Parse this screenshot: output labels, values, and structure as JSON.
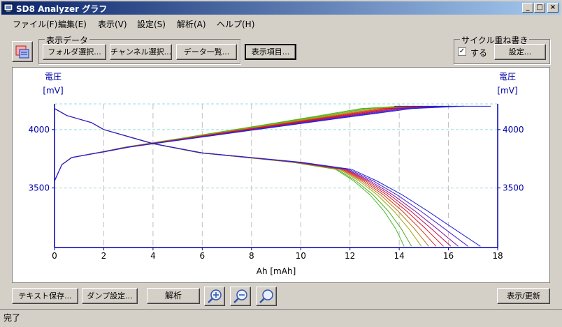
{
  "window": {
    "title": "SD8 Analyzer グラフ"
  },
  "menu": [
    "ファイル(F)",
    "編集(E)",
    "表示(V)",
    "設定(S)",
    "解析(A)",
    "ヘルプ(H)"
  ],
  "display_data": {
    "group_label": "表示データ",
    "folder_button": "フォルダ選択...",
    "channel_button": "チャンネル選択...",
    "data_list_button": "データ一覧..."
  },
  "display_items_button": "表示項目...",
  "cycle_overlay": {
    "group_label": "サイクル重ね書き",
    "checkbox_label": "する",
    "checked": true,
    "settings_button": "設定..."
  },
  "bottom": {
    "text_save_button": "テキスト保存...",
    "dump_settings_button": "ダンプ設定...",
    "analysis_button": "解析",
    "refresh_button": "表示/更新"
  },
  "status": "完了",
  "colors": {
    "accent": "#0a246a",
    "axis": "#0000aa",
    "grid": "#c0c0c0"
  },
  "chart_data": {
    "type": "line",
    "xlabel": "Ah [mAh]",
    "ylabel_left": [
      "電圧",
      "[mV]"
    ],
    "ylabel_right": [
      "電圧",
      "[mV]"
    ],
    "xlim": [
      0,
      18
    ],
    "x_ticks": [
      0,
      2,
      4,
      6,
      8,
      10,
      12,
      14,
      16,
      18
    ],
    "ylim": [
      2990,
      4220
    ],
    "y_ticks": [
      3500,
      4000
    ],
    "grid": true,
    "legend": "none",
    "charge_curve": {
      "x": [
        0,
        0.3,
        0.7,
        1.2,
        2,
        3,
        4,
        5,
        6,
        8,
        10,
        12,
        14,
        16
      ],
      "y": [
        3560,
        3700,
        3760,
        3780,
        3810,
        3850,
        3880,
        3910,
        3940,
        4000,
        4060,
        4120,
        4180,
        4200
      ]
    },
    "discharge_curve": {
      "x": [
        0,
        0.5,
        1,
        1.5,
        2,
        3,
        4,
        6,
        8,
        10,
        12,
        13,
        14,
        15,
        16,
        17
      ],
      "y": [
        4180,
        4120,
        4090,
        4060,
        4000,
        3940,
        3880,
        3800,
        3760,
        3720,
        3660,
        3560,
        3440,
        3300,
        3150,
        3000
      ]
    },
    "cycles": [
      {
        "color": "#44bb22",
        "end_capacity": 14.2
      },
      {
        "color": "#55aa22",
        "end_capacity": 14.5
      },
      {
        "color": "#99aa11",
        "end_capacity": 14.9
      },
      {
        "color": "#bb7711",
        "end_capacity": 15.2
      },
      {
        "color": "#cc3311",
        "end_capacity": 15.5
      },
      {
        "color": "#dd1122",
        "end_capacity": 15.8
      },
      {
        "color": "#bb1144",
        "end_capacity": 16.1
      },
      {
        "color": "#8811aa",
        "end_capacity": 16.4
      },
      {
        "color": "#4422cc",
        "end_capacity": 16.8
      },
      {
        "color": "#2222dd",
        "end_capacity": 17.3
      }
    ]
  }
}
